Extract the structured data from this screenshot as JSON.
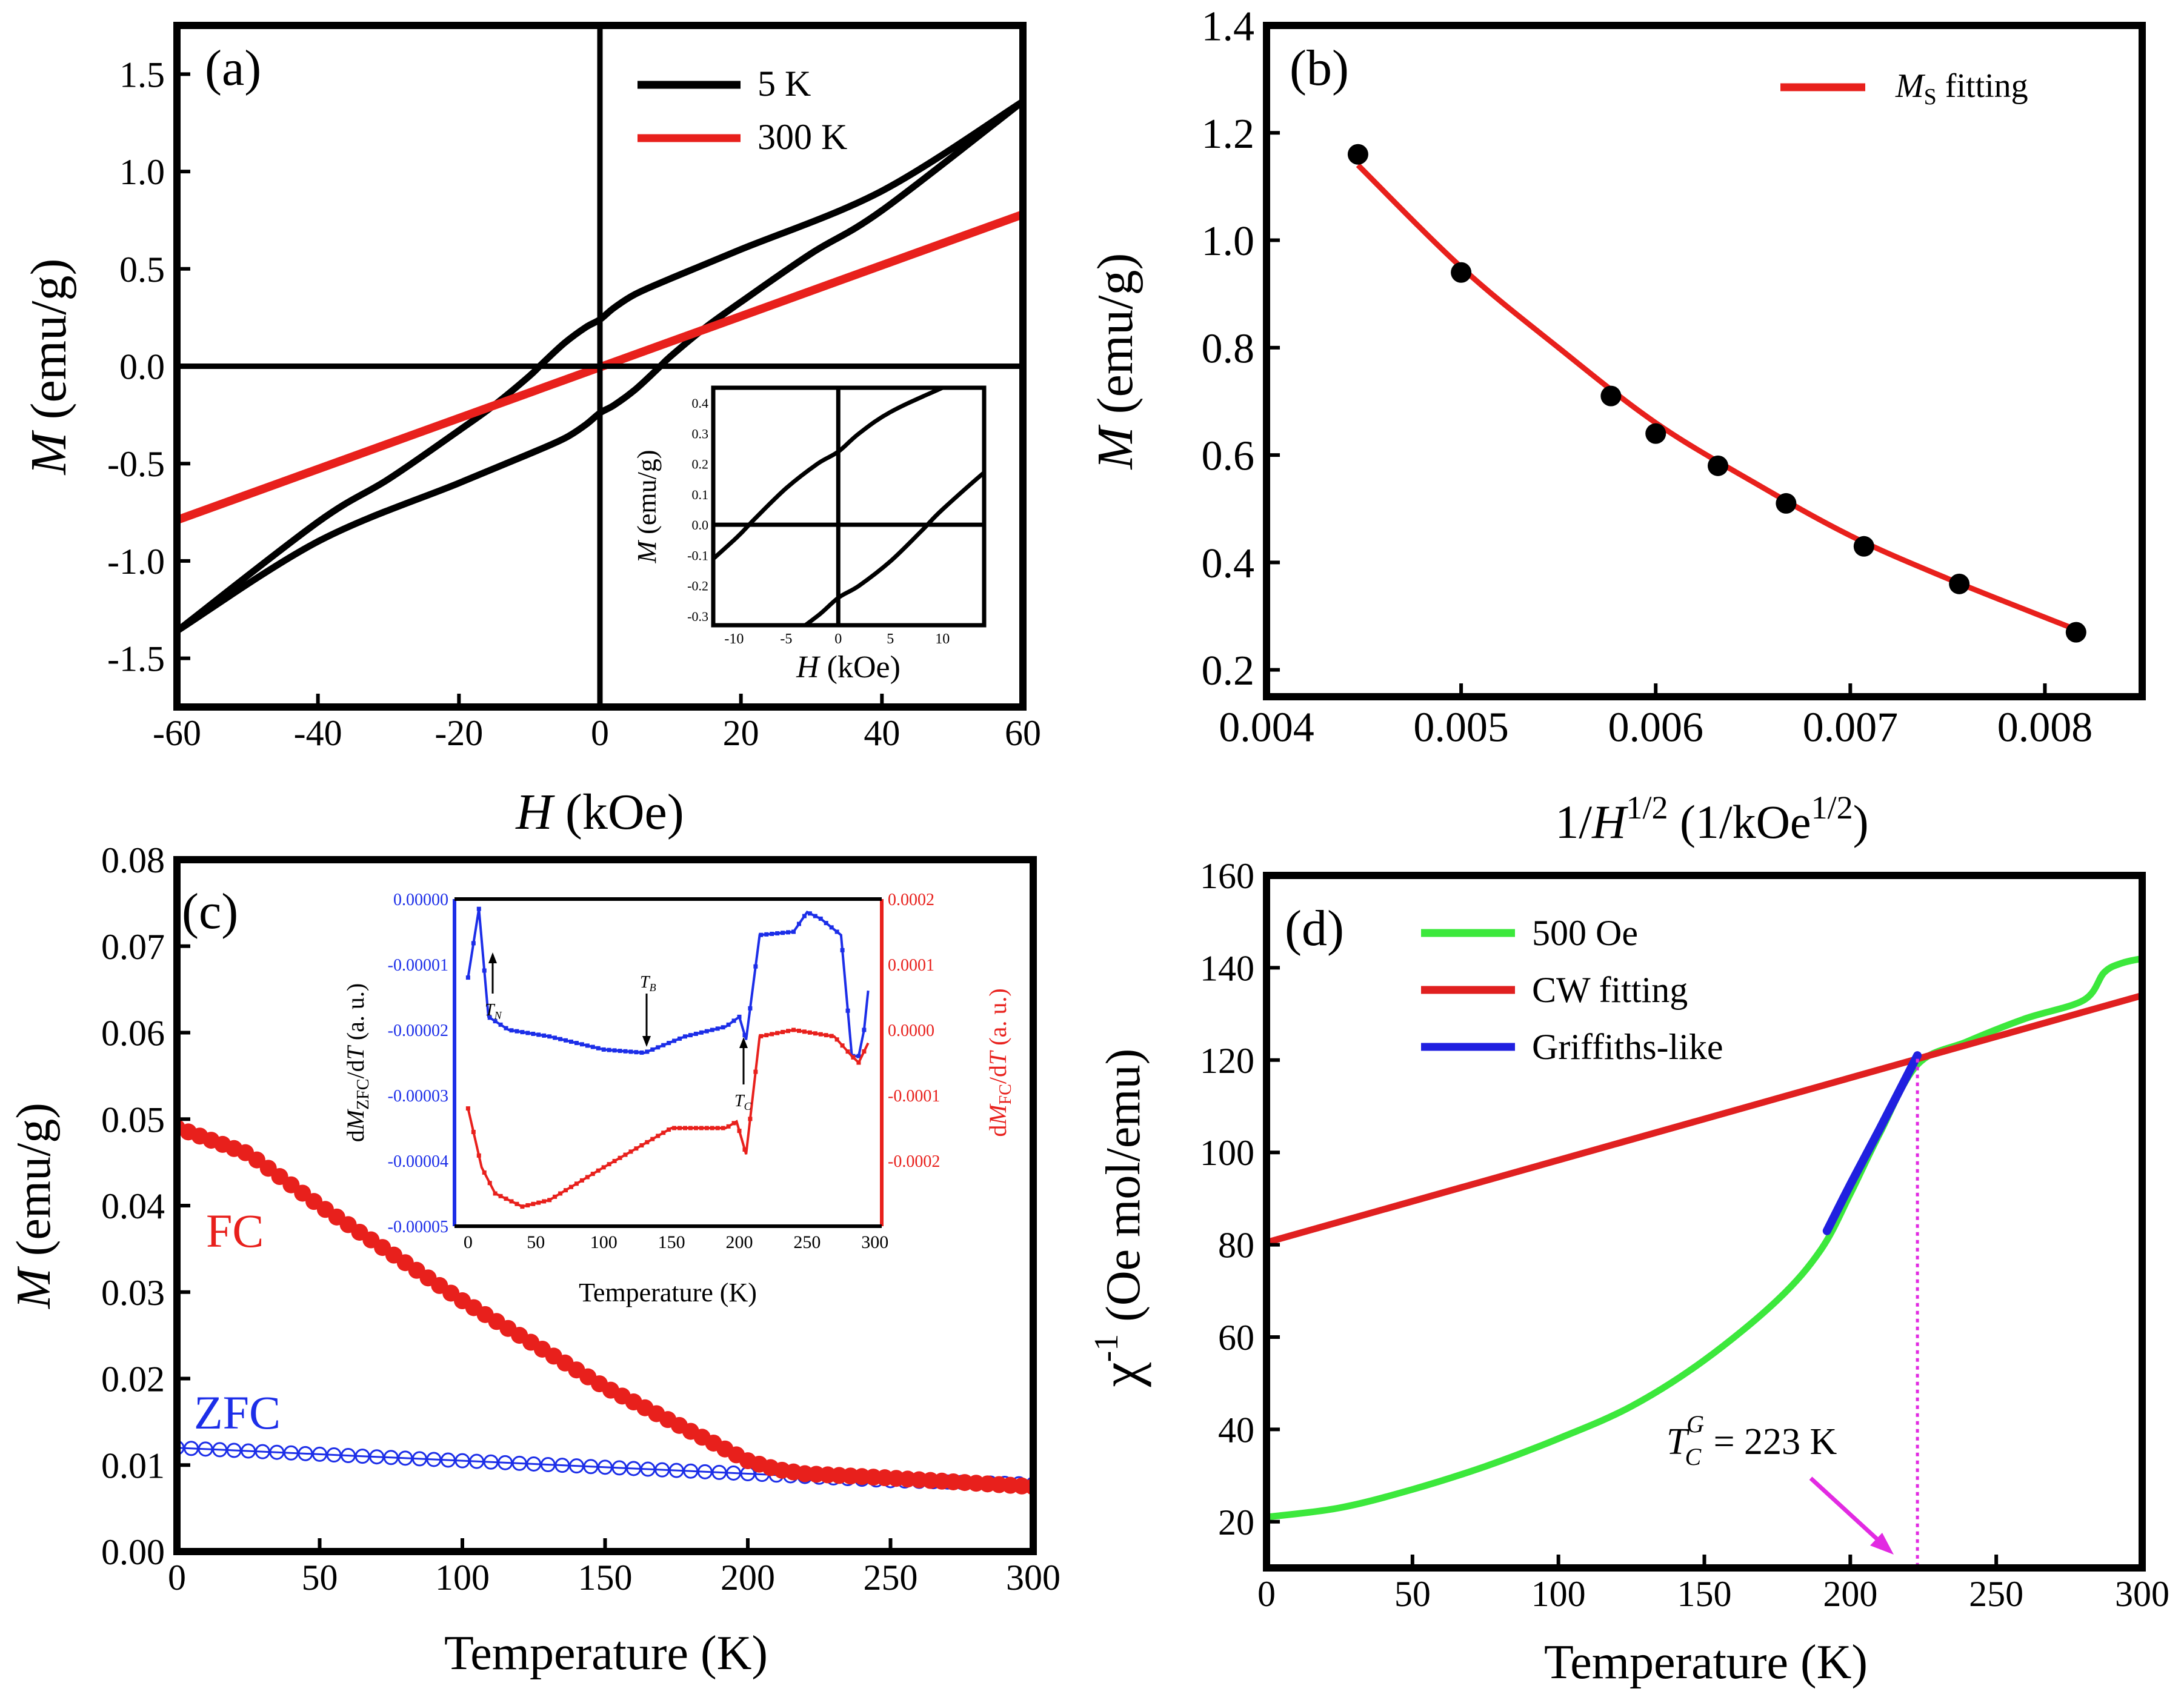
{
  "chart_data": [
    {
      "id": "a",
      "panel_label": "(a)",
      "type": "line",
      "xlabel": "H (kOe)",
      "xlabel_italic": "H",
      "xlabel_rest": " (kOe)",
      "ylabel": "M (emu/g)",
      "ylabel_italic": "M",
      "ylabel_rest": " (emu/g)",
      "xlim": [
        -60,
        60
      ],
      "ylim": [
        -1.75,
        1.75
      ],
      "xticks": [
        -60,
        -40,
        -20,
        0,
        20,
        40,
        60
      ],
      "xtick_labels": [
        "-60",
        "-40",
        "-20",
        "0",
        "20",
        "40",
        "60"
      ],
      "yticks": [
        -1.5,
        -1.0,
        -0.5,
        0.0,
        0.5,
        1.0,
        1.5
      ],
      "ytick_labels": [
        "-1.5",
        "-1.0",
        "-0.5",
        "0.0",
        "0.5",
        "1.0",
        "1.5"
      ],
      "legend": [
        "5 K",
        "300 K"
      ],
      "legend_position": "top-right",
      "series": [
        {
          "name": "5 K descending",
          "color": "#000000",
          "x": [
            60,
            40,
            20,
            10,
            5,
            2,
            0,
            -2,
            -5,
            -8,
            -10,
            -15,
            -20,
            -30,
            -40,
            -60
          ],
          "y": [
            1.36,
            0.9,
            0.6,
            0.45,
            0.37,
            0.3,
            0.24,
            0.2,
            0.12,
            0.02,
            -0.05,
            -0.2,
            -0.33,
            -0.58,
            -0.8,
            -1.36
          ]
        },
        {
          "name": "5 K ascending",
          "color": "#000000",
          "x": [
            -60,
            -40,
            -20,
            -10,
            -5,
            -2,
            0,
            2,
            5,
            8,
            10,
            15,
            20,
            30,
            40,
            60
          ],
          "y": [
            -1.36,
            -0.9,
            -0.6,
            -0.45,
            -0.37,
            -0.3,
            -0.24,
            -0.2,
            -0.12,
            -0.02,
            0.05,
            0.2,
            0.33,
            0.58,
            0.8,
            1.36
          ]
        },
        {
          "name": "300 K",
          "color": "#e8201c",
          "x": [
            -60,
            60
          ],
          "y": [
            -0.79,
            0.78
          ]
        }
      ],
      "inset": {
        "xlabel_italic": "H",
        "xlabel_rest": " (kOe)",
        "ylabel_italic": "M",
        "ylabel_rest": " (emu/g)",
        "xlim": [
          -12,
          14
        ],
        "ylim": [
          -0.33,
          0.45
        ],
        "xtick_labels": [
          "-10",
          "-5",
          "0",
          "5",
          "10"
        ],
        "ytick_labels": [
          "-0.3",
          "-0.2",
          "-0.1",
          "0.0",
          "0.1",
          "0.2",
          "0.3",
          "0.4"
        ]
      }
    },
    {
      "id": "b",
      "panel_label": "(b)",
      "type": "scatter",
      "xlabel": "1/H^1/2 (1/kOe^1/2)",
      "ylabel": "M (emu/g)",
      "ylabel_italic": "M",
      "ylabel_rest": " (emu/g)",
      "xlabel_parts": [
        "1/",
        "H",
        "1/2",
        " (1/kOe",
        "1/2",
        ")"
      ],
      "xlim": [
        0.004,
        0.0085
      ],
      "ylim": [
        0.15,
        1.4
      ],
      "xticks": [
        0.004,
        0.005,
        0.006,
        0.007,
        0.008
      ],
      "xtick_labels": [
        "0.004",
        "0.005",
        "0.006",
        "0.007",
        "0.008"
      ],
      "yticks": [
        0.2,
        0.4,
        0.6,
        0.8,
        1.0,
        1.2,
        1.4
      ],
      "ytick_labels": [
        "0.2",
        "0.4",
        "0.6",
        "0.8",
        "1.0",
        "1.2",
        "1.4"
      ],
      "legend": [
        "Ms fitting"
      ],
      "legend_position": "top-right",
      "points": {
        "x": [
          0.00447,
          0.005,
          0.00577,
          0.006,
          0.00632,
          0.00667,
          0.00707,
          0.00756,
          0.00816
        ],
        "y": [
          1.16,
          0.94,
          0.71,
          0.64,
          0.58,
          0.51,
          0.43,
          0.36,
          0.27
        ]
      },
      "fit": {
        "name": "Ms fitting",
        "color": "#e8201c",
        "x": [
          0.00447,
          0.005,
          0.0055,
          0.006,
          0.0065,
          0.007,
          0.0075,
          0.00816
        ],
        "y": [
          1.14,
          0.95,
          0.8,
          0.66,
          0.55,
          0.45,
          0.37,
          0.275
        ]
      }
    },
    {
      "id": "c",
      "panel_label": "(c)",
      "type": "scatter",
      "xlabel": "Temperature (K)",
      "ylabel": "M (emu/g)",
      "ylabel_italic": "M",
      "ylabel_rest": " (emu/g)",
      "xlim": [
        0,
        300
      ],
      "ylim": [
        0,
        0.08
      ],
      "xticks": [
        0,
        50,
        100,
        150,
        200,
        250,
        300
      ],
      "xtick_labels": [
        "0",
        "50",
        "100",
        "150",
        "200",
        "250",
        "300"
      ],
      "yticks": [
        0,
        0.01,
        0.02,
        0.03,
        0.04,
        0.05,
        0.06,
        0.07,
        0.08
      ],
      "ytick_labels": [
        "0.00",
        "0.01",
        "0.02",
        "0.03",
        "0.04",
        "0.05",
        "0.06",
        "0.07",
        "0.08"
      ],
      "annotations": [
        "FC",
        "ZFC"
      ],
      "series": [
        {
          "name": "FC",
          "color": "#e8201c",
          "x": [
            0,
            25,
            50,
            100,
            150,
            200,
            210,
            220,
            250,
            300
          ],
          "y": [
            0.049,
            0.046,
            0.04,
            0.029,
            0.019,
            0.0105,
            0.0095,
            0.009,
            0.0085,
            0.0075
          ]
        },
        {
          "name": "ZFC",
          "color": "#1c2ee8",
          "x": [
            0,
            100,
            200,
            250,
            300
          ],
          "y": [
            0.012,
            0.0105,
            0.009,
            0.0082,
            0.0078
          ]
        }
      ],
      "inset": {
        "xlabel": "Temperature (K)",
        "ylabel_left": "dM_ZFC/dT (a. u.)",
        "ylabel_left_parts": [
          "d",
          "M",
          "ZFC",
          "/d",
          "T",
          " (a. u.)"
        ],
        "ylabel_right": "dM_FC/dT (a. u.)",
        "ylabel_right_parts": [
          "d",
          "M",
          "FC",
          "/d",
          "T",
          " (a. u.)"
        ],
        "xlim": [
          -10,
          305
        ],
        "xtick_labels": [
          "0",
          "50",
          "100",
          "150",
          "200",
          "250",
          "300"
        ],
        "ylim_left": [
          -5e-05,
          0
        ],
        "ytick_labels_left": [
          "0.00000",
          "-0.00001",
          "-0.00002",
          "-0.00003",
          "-0.00004",
          "-0.00005"
        ],
        "ylim_right": [
          -0.0003,
          0.0002
        ],
        "ytick_labels_right": [
          "0.0002",
          "0.0001",
          "0.0000",
          "-0.0001",
          "-0.0002"
        ],
        "markers": {
          "TN_main": "T",
          "TN_sub": "N",
          "TB_main": "T",
          "TB_sub": "B",
          "TC_main": "T",
          "TC_sub": "C"
        },
        "series": [
          {
            "name": "dMZFC/dT",
            "color": "#1c2ee8",
            "x": [
              0,
              8,
              15,
              30,
              60,
              100,
              130,
              160,
              190,
              200,
              205,
              215,
              240,
              250,
              260,
              275,
              283,
              288,
              292,
              295
            ],
            "y": [
              -1.2e-05,
              -1.5e-06,
              -1.8e-05,
              -2e-05,
              -2.1e-05,
              -2.3e-05,
              -2.35e-05,
              -2.1e-05,
              -1.95e-05,
              -1.8e-05,
              -2.15e-05,
              -5.5e-06,
              -5e-06,
              -2e-06,
              -3e-06,
              -5.5e-06,
              -2.4e-05,
              -2.4e-05,
              -2e-05,
              -1.4e-05
            ]
          },
          {
            "name": "dMFC/dT",
            "color": "#e8201c",
            "x": [
              0,
              10,
              20,
              40,
              60,
              100,
              150,
              190,
              198,
              205,
              215,
              240,
              270,
              283,
              288,
              295
            ],
            "y": [
              -0.00012,
              -0.00021,
              -0.00025,
              -0.00027,
              -0.00026,
              -0.00021,
              -0.00015,
              -0.00015,
              -0.00014,
              -0.00019,
              -1e-05,
              0.0,
              -1e-05,
              -4e-05,
              -5e-05,
              -2e-05
            ]
          }
        ]
      }
    },
    {
      "id": "d",
      "panel_label": "(d)",
      "type": "line",
      "xlabel": "Temperature (K)",
      "ylabel": "χ^-1 (Oe mol/emu)",
      "ylabel_parts": [
        "χ",
        "-1",
        " (Oe mol/emu)"
      ],
      "xlim": [
        0,
        300
      ],
      "ylim": [
        10,
        160
      ],
      "xticks": [
        0,
        50,
        100,
        150,
        200,
        250,
        300
      ],
      "xtick_labels": [
        "0",
        "50",
        "100",
        "150",
        "200",
        "250",
        "300"
      ],
      "yticks": [
        20,
        40,
        60,
        80,
        100,
        120,
        140,
        160
      ],
      "ytick_labels": [
        "20",
        "40",
        "60",
        "80",
        "100",
        "120",
        "140",
        "160"
      ],
      "legend": [
        "500 Oe",
        "CW fitting",
        "Griffiths-like"
      ],
      "legend_position": "top-left",
      "annotation_parts": [
        "T",
        "C",
        "G",
        " = 223 K"
      ],
      "marker_x": 223,
      "series": [
        {
          "name": "500 Oe",
          "color": "#3ce83c",
          "x": [
            0,
            25,
            50,
            75,
            100,
            125,
            150,
            175,
            190,
            200,
            210,
            223,
            240,
            260,
            280,
            287,
            293,
            300
          ],
          "y": [
            21,
            23,
            27,
            32,
            38,
            45,
            55,
            68,
            79,
            91,
            104,
            119,
            124,
            129,
            133,
            139,
            141,
            142
          ]
        },
        {
          "name": "CW fitting",
          "color": "#e02020",
          "x": [
            0,
            300
          ],
          "y": [
            80.5,
            134
          ]
        },
        {
          "name": "Griffiths-like",
          "color": "#2020e0",
          "x": [
            192,
            200,
            210,
            223
          ],
          "y": [
            83,
            93,
            105,
            121
          ]
        }
      ]
    }
  ]
}
